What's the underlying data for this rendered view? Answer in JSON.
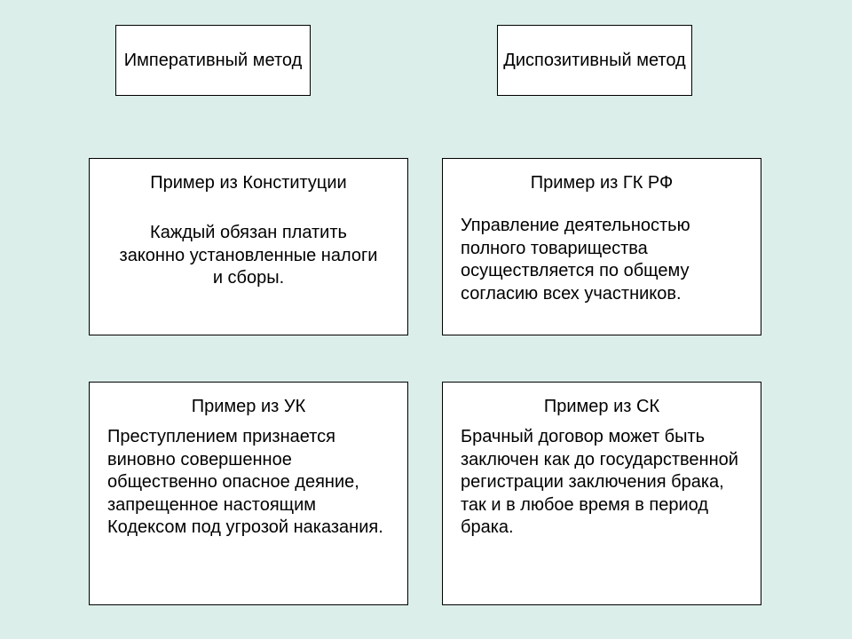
{
  "type": "infographic",
  "background_color": "#dceeea",
  "box_background": "#ffffff",
  "box_border_color": "#000000",
  "text_color": "#000000",
  "fontsize_header": 20,
  "fontsize_title": 20,
  "fontsize_body": 20,
  "headers": {
    "left": "Императивный метод",
    "right": "Диспозитивный метод"
  },
  "boxes": {
    "top_left": {
      "title": "Пример из Конституции",
      "body": "Каждый обязан платить законно установленные налоги и сборы.",
      "body_align": "center"
    },
    "top_right": {
      "title": "Пример из ГК РФ",
      "body": "Управление деятельностью полного товарищества осуществляется  по общему согласию всех участников.",
      "body_align": "left"
    },
    "bottom_left": {
      "title": "Пример из УК",
      "body": "  Преступлением признается виновно совершенное общественно опасное деяние, запрещенное настоящим Кодексом под угрозой наказания.",
      "body_align": "left"
    },
    "bottom_right": {
      "title": "Пример из СК",
      "body": "  Брачный договор может быть заключен как до государственной регистрации заключения брака, так и в любое время в период брака.",
      "body_align": "left"
    }
  }
}
